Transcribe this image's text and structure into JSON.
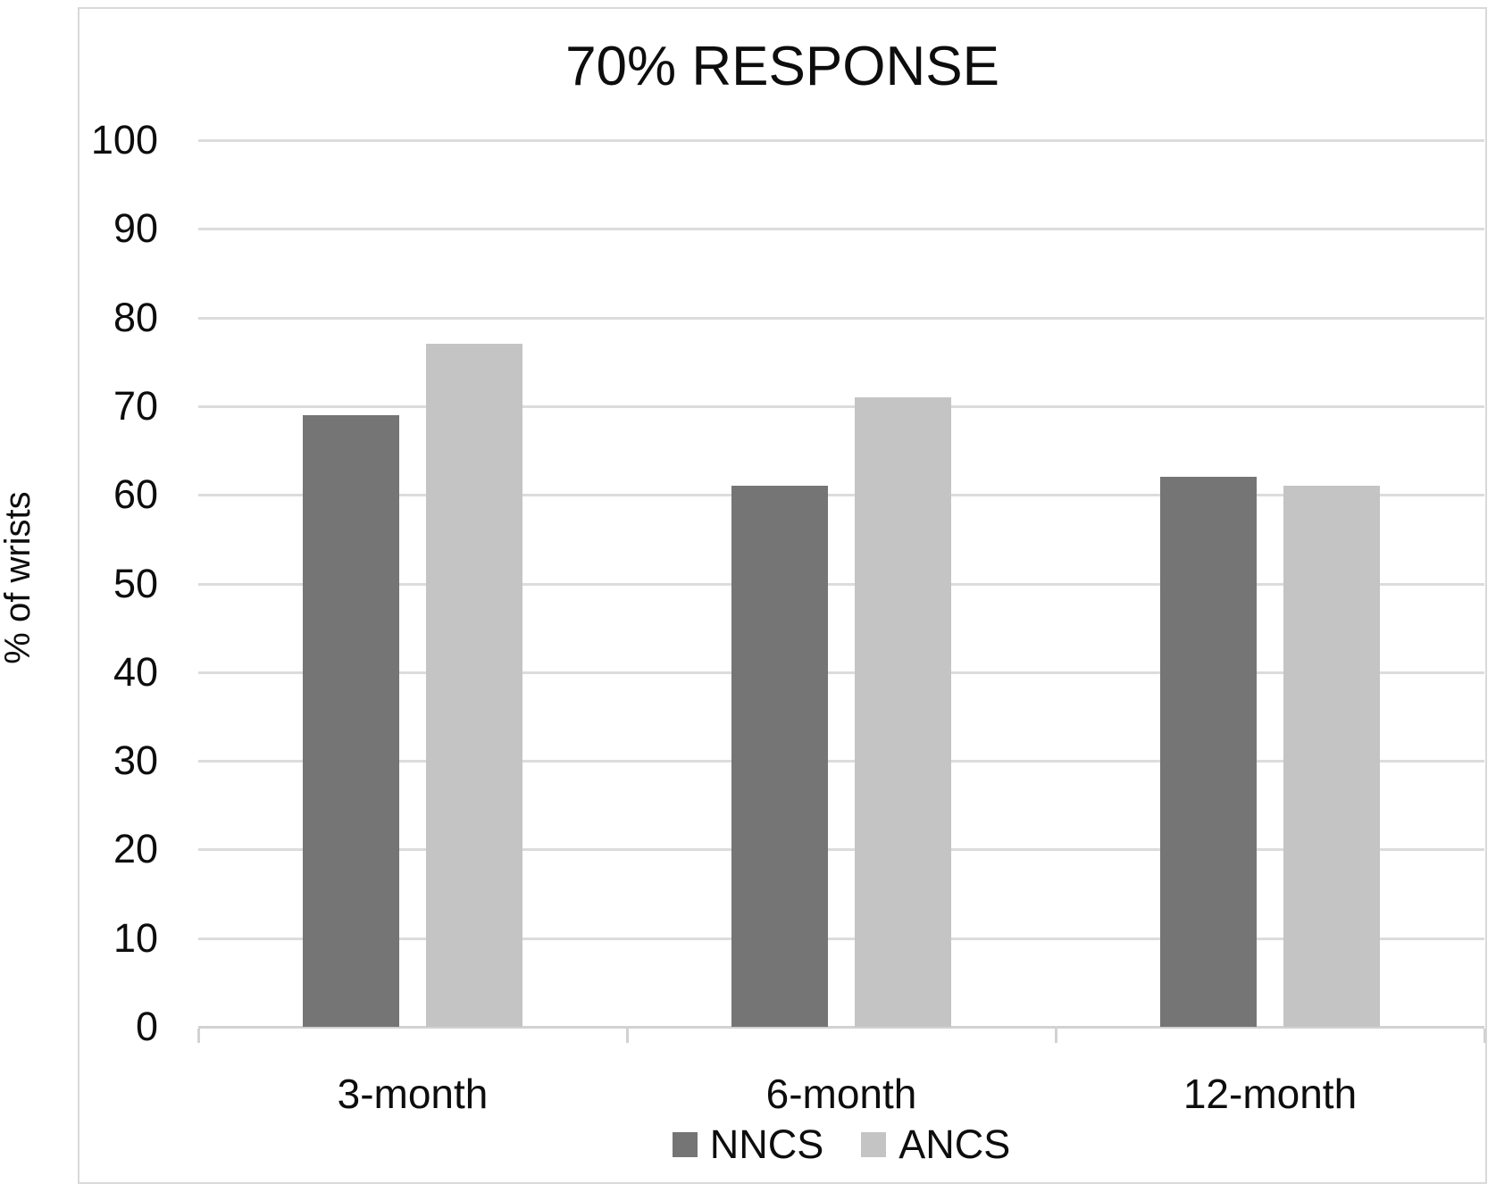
{
  "chart_data": {
    "type": "bar",
    "title": "70% RESPONSE",
    "xlabel": "",
    "ylabel": "% of wrists",
    "categories": [
      "3-month",
      "6-month",
      "12-month"
    ],
    "series": [
      {
        "name": "NNCS",
        "color": "#757575",
        "values": [
          69,
          61,
          62
        ]
      },
      {
        "name": "ANCS",
        "color": "#c4c4c4",
        "values": [
          77,
          71,
          61
        ]
      }
    ],
    "ylim": [
      0,
      100
    ],
    "yticks": [
      0,
      10,
      20,
      30,
      40,
      50,
      60,
      70,
      80,
      90,
      100
    ],
    "grid": true,
    "legend_position": "bottom"
  }
}
